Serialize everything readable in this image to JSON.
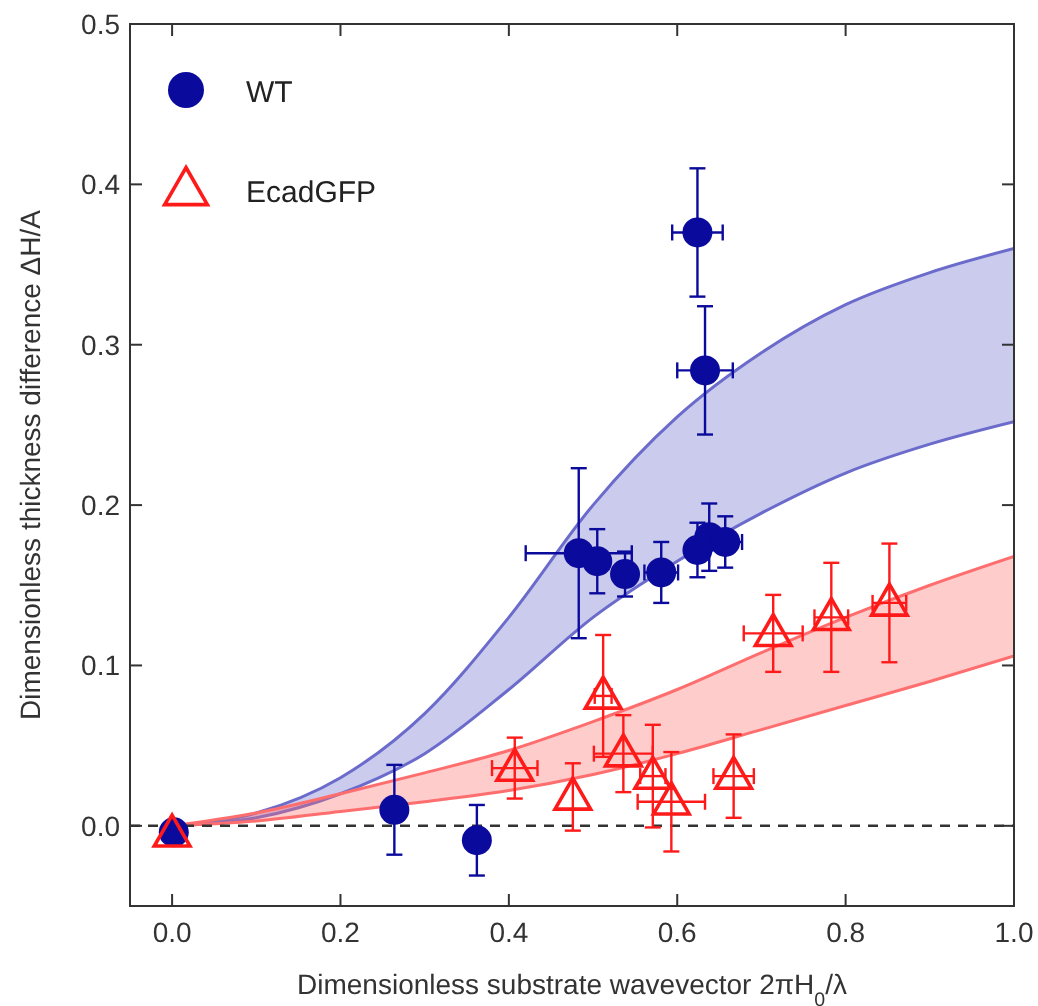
{
  "chart_data": {
    "type": "scatter",
    "xlabel": "Dimensionless substrate wavevector 2πH$_{0}$/λ",
    "ylabel": "Dimensionless thickness difference ΔH/A",
    "xlim": [
      -0.05,
      1.0
    ],
    "ylim": [
      -0.05,
      0.5
    ],
    "xticks": [
      {
        "value": 0,
        "label": "0.0"
      },
      {
        "value": 0.2,
        "label": "0.2"
      },
      {
        "value": 0.4,
        "label": "0.4"
      },
      {
        "value": 0.6,
        "label": "0.6"
      },
      {
        "value": 0.8,
        "label": "0.8"
      },
      {
        "value": 1,
        "label": "1.0"
      }
    ],
    "yticks": [
      {
        "value": 0,
        "label": "0.0"
      },
      {
        "value": 0.1,
        "label": "0.1"
      },
      {
        "value": 0.2,
        "label": "0.2"
      },
      {
        "value": 0.3,
        "label": "0.3"
      },
      {
        "value": 0.4,
        "label": "0.4"
      },
      {
        "value": 0.5,
        "label": "0.5"
      }
    ],
    "grid": false,
    "legend": "top left",
    "ref_lines": [
      {
        "axis": "y",
        "value": 0,
        "label": null,
        "color": "#333333",
        "line_style": "dashed"
      }
    ],
    "series": [
      {
        "type": "line",
        "color": "#6b6bcc",
        "x": [
          0,
          0.1,
          0.2,
          0.3,
          0.4,
          0.5,
          0.6,
          0.7,
          0.8,
          0.9,
          1.0
        ],
        "values": [
          0,
          0.008,
          0.03,
          0.07,
          0.13,
          0.2,
          0.255,
          0.295,
          0.325,
          0.345,
          0.36
        ],
        "lower": [
          0,
          0.005,
          0.02,
          0.045,
          0.085,
          0.13,
          0.165,
          0.195,
          0.22,
          0.238,
          0.252
        ],
        "upper": [
          0,
          0.008,
          0.03,
          0.07,
          0.13,
          0.2,
          0.255,
          0.295,
          0.325,
          0.345,
          0.36
        ]
      },
      {
        "type": "line",
        "color": "#6b6bcc",
        "x": [
          0,
          0.1,
          0.2,
          0.3,
          0.4,
          0.5,
          0.6,
          0.7,
          0.8,
          0.9,
          1.0
        ],
        "values": [
          0,
          0.005,
          0.02,
          0.045,
          0.085,
          0.13,
          0.165,
          0.195,
          0.22,
          0.238,
          0.252
        ]
      },
      {
        "type": "line",
        "color": "#ff6e6e",
        "x": [
          0,
          0.1,
          0.2,
          0.3,
          0.4,
          0.5,
          0.6,
          0.7,
          0.8,
          0.9,
          1.0
        ],
        "values": [
          0,
          0.008,
          0.02,
          0.033,
          0.047,
          0.065,
          0.085,
          0.108,
          0.13,
          0.15,
          0.168
        ],
        "lower": [
          0,
          0.003,
          0.009,
          0.015,
          0.022,
          0.032,
          0.045,
          0.06,
          0.075,
          0.09,
          0.106
        ],
        "upper": [
          0,
          0.008,
          0.02,
          0.033,
          0.047,
          0.065,
          0.085,
          0.108,
          0.13,
          0.15,
          0.168
        ]
      },
      {
        "type": "line",
        "color": "#ff6e6e",
        "x": [
          0,
          0.1,
          0.2,
          0.3,
          0.4,
          0.5,
          0.6,
          0.7,
          0.8,
          0.9,
          1.0
        ],
        "values": [
          0,
          0.003,
          0.009,
          0.015,
          0.022,
          0.032,
          0.045,
          0.06,
          0.075,
          0.09,
          0.106
        ]
      },
      {
        "name": "WT",
        "marker": "circle",
        "color": "#0a0a9c",
        "x": [
          0.002,
          0.264,
          0.362,
          0.483,
          0.505,
          0.538,
          0.581,
          0.624,
          0.638,
          0.657,
          0.624,
          0.633
        ],
        "values": [
          -0.004,
          0.01,
          -0.009,
          0.17,
          0.165,
          0.157,
          0.158,
          0.172,
          0.18,
          0.177,
          0.37,
          0.284
        ],
        "errors": [
          null,
          0.028,
          0.022,
          0.053,
          0.02,
          0.014,
          0.019,
          0.017,
          0.021,
          0.016,
          0.04,
          0.04
        ],
        "xerrors": [
          null,
          null,
          null,
          0.063,
          null,
          null,
          0.02,
          0.01,
          0.01,
          0.02,
          0.03,
          0.033
        ]
      },
      {
        "name": "EcadGFP",
        "marker": "triangle",
        "color": "#ff1a1a",
        "x": [
          0.0,
          0.407,
          0.476,
          0.512,
          0.536,
          0.571,
          0.593,
          0.667,
          0.714,
          0.783,
          0.852
        ],
        "values": [
          -0.005,
          0.036,
          0.018,
          0.081,
          0.045,
          0.031,
          0.015,
          0.031,
          0.12,
          0.13,
          0.139
        ],
        "errors": [
          null,
          0.019,
          0.021,
          0.038,
          0.024,
          0.032,
          0.031,
          0.026,
          0.024,
          0.034,
          0.037
        ],
        "xerrors": [
          null,
          0.027,
          null,
          0.01,
          0.035,
          0.015,
          0.04,
          0.024,
          0.035,
          0.02,
          0.02
        ]
      }
    ]
  }
}
